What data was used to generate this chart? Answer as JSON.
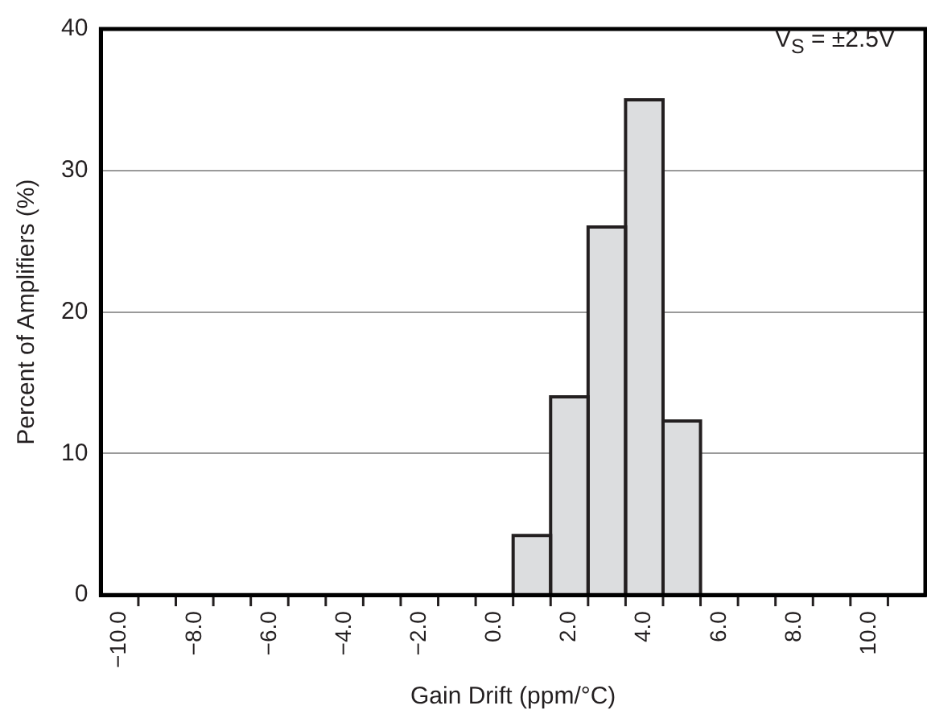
{
  "chart_data": {
    "type": "histogram",
    "xlabel": "Gain Drift (ppm/°C)",
    "ylabel": "Percent of Amplifiers (%)",
    "annotations": [
      "V$_{S}$ = ±2.5V"
    ],
    "bins": [
      -10.5,
      -9.5,
      -8.5,
      -7.5,
      -6.5,
      -5.5,
      -4.5,
      -3.5,
      -2.5,
      -1.5,
      -0.5,
      0.5,
      1.5,
      2.5,
      3.5,
      4.5,
      5.5,
      6.5,
      7.5,
      8.5,
      9.5,
      10.5,
      11.5
    ],
    "values": [
      0,
      0,
      0,
      0,
      0,
      0,
      0,
      0,
      0,
      0,
      0,
      4.2,
      14,
      26,
      35,
      12.3,
      0,
      0,
      0,
      0,
      0,
      0
    ],
    "color": "#dcdddf",
    "xlim": [
      -10.5,
      11.5
    ],
    "xticks": [
      {
        "value": -10,
        "label": "−10.0"
      },
      {
        "value": -8,
        "label": "−8.0"
      },
      {
        "value": -6,
        "label": "−6.0"
      },
      {
        "value": -4,
        "label": "−4.0"
      },
      {
        "value": -2,
        "label": "−2.0"
      },
      {
        "value": 0,
        "label": "0.0"
      },
      {
        "value": 2,
        "label": "2.0"
      },
      {
        "value": 4,
        "label": "4.0"
      },
      {
        "value": 6,
        "label": "6.0"
      },
      {
        "value": 8,
        "label": "8.0"
      },
      {
        "value": 10,
        "label": "10.0"
      }
    ],
    "ylim": [
      0,
      40
    ],
    "yticks": [
      0,
      10,
      20,
      30,
      40
    ],
    "grid": "y"
  }
}
